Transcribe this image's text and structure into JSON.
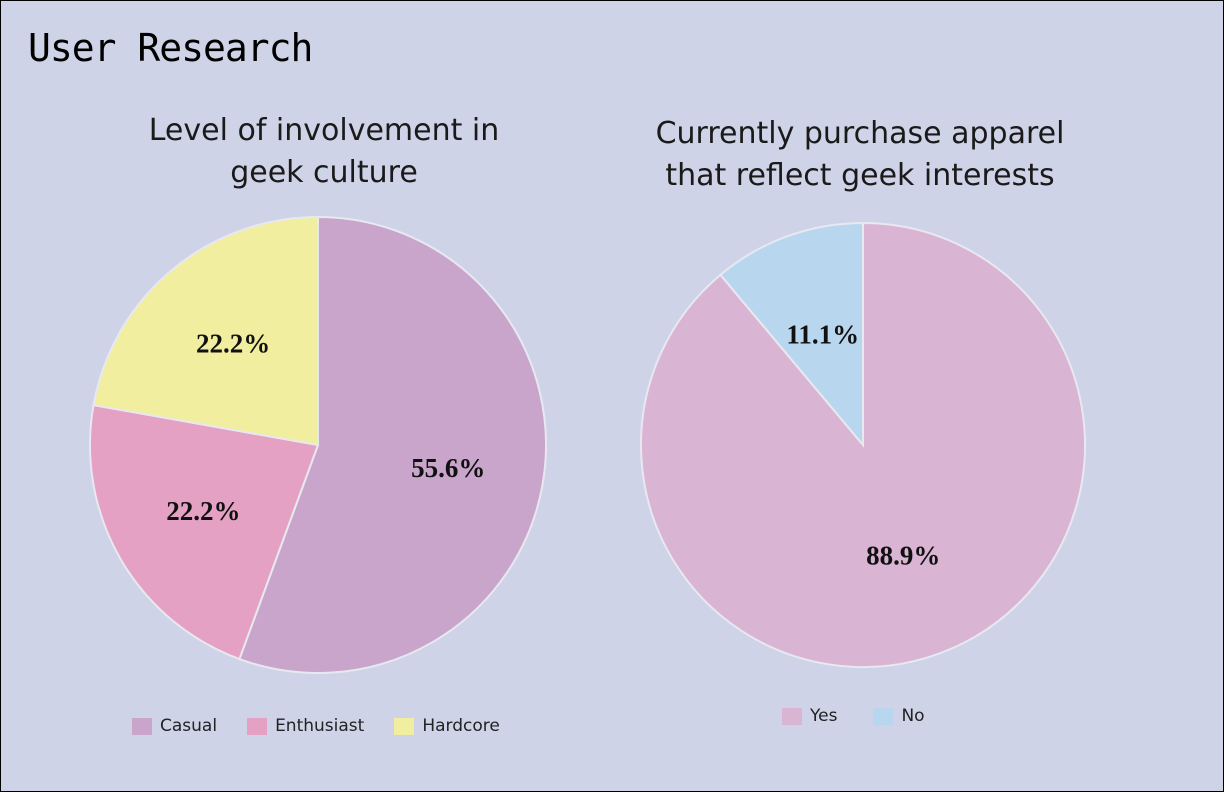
{
  "page": {
    "title": "User Research"
  },
  "chart_data": [
    {
      "type": "pie",
      "title": "Level of involvement in geek culture",
      "title_lines": [
        "Level of involvement in",
        "geek culture"
      ],
      "categories": [
        "Casual",
        "Enthusiast",
        "Hardcore"
      ],
      "values": [
        55.6,
        22.2,
        22.2
      ],
      "labels": [
        "55.6%",
        "22.2%",
        "22.2%"
      ],
      "colors": [
        "#c9a5cb",
        "#e4a1c3",
        "#f1ee9f"
      ],
      "legend": "bottom"
    },
    {
      "type": "pie",
      "title": "Currently purchase apparel that reflect geek interests",
      "title_lines": [
        "Currently purchase apparel",
        "that reflect geek interests"
      ],
      "categories": [
        "Yes",
        "No"
      ],
      "values": [
        88.9,
        11.1
      ],
      "labels": [
        "88.9%",
        "11.1%"
      ],
      "colors": [
        "#d9b4d3",
        "#b8d7ee"
      ],
      "legend": "bottom"
    }
  ]
}
